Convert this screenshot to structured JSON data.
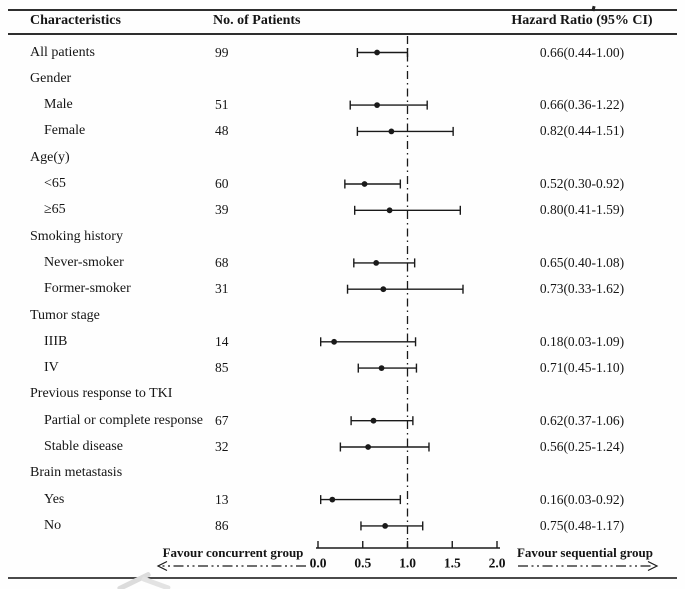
{
  "chart_data": {
    "type": "forest",
    "title": "",
    "columns": [
      "Characteristics",
      "No. of Patients",
      "Hazard Ratio (95% CI)"
    ],
    "axis": {
      "xlim": [
        0.0,
        2.0
      ],
      "tick_labels": [
        "0.0",
        "0.5",
        "1.0",
        "1.5",
        "2.0"
      ],
      "tick_values": [
        0.0,
        0.5,
        1.0,
        1.5,
        2.0
      ],
      "reference_line": 1.0
    },
    "annotations": {
      "left_arrow_label": "Favour concurrent group",
      "right_arrow_label": "Favour sequential group"
    },
    "rows": [
      {
        "label": "All patients",
        "indent": 0,
        "n": "99",
        "hr": 0.66,
        "lo": 0.44,
        "hi": 1.0,
        "ci_text": "0.66(0.44-1.00)"
      },
      {
        "label": "Gender",
        "indent": 0,
        "n": null,
        "hr": null,
        "lo": null,
        "hi": null,
        "ci_text": null
      },
      {
        "label": "Male",
        "indent": 1,
        "n": "51",
        "hr": 0.66,
        "lo": 0.36,
        "hi": 1.22,
        "ci_text": "0.66(0.36-1.22)"
      },
      {
        "label": "Female",
        "indent": 1,
        "n": "48",
        "hr": 0.82,
        "lo": 0.44,
        "hi": 1.51,
        "ci_text": "0.82(0.44-1.51)"
      },
      {
        "label": "Age(y)",
        "indent": 0,
        "n": null,
        "hr": null,
        "lo": null,
        "hi": null,
        "ci_text": null
      },
      {
        "label": "<65",
        "indent": 1,
        "n": "60",
        "hr": 0.52,
        "lo": 0.3,
        "hi": 0.92,
        "ci_text": "0.52(0.30-0.92)"
      },
      {
        "label": "≥65",
        "indent": 1,
        "n": "39",
        "hr": 0.8,
        "lo": 0.41,
        "hi": 1.59,
        "ci_text": "0.80(0.41-1.59)"
      },
      {
        "label": "Smoking history",
        "indent": 0,
        "n": null,
        "hr": null,
        "lo": null,
        "hi": null,
        "ci_text": null
      },
      {
        "label": "Never-smoker",
        "indent": 1,
        "n": "68",
        "hr": 0.65,
        "lo": 0.4,
        "hi": 1.08,
        "ci_text": "0.65(0.40-1.08)"
      },
      {
        "label": "Former-smoker",
        "indent": 1,
        "n": "31",
        "hr": 0.73,
        "lo": 0.33,
        "hi": 1.62,
        "ci_text": "0.73(0.33-1.62)"
      },
      {
        "label": "Tumor stage",
        "indent": 0,
        "n": null,
        "hr": null,
        "lo": null,
        "hi": null,
        "ci_text": null
      },
      {
        "label": "IIIB",
        "indent": 1,
        "n": "14",
        "hr": 0.18,
        "lo": 0.03,
        "hi": 1.09,
        "ci_text": "0.18(0.03-1.09)"
      },
      {
        "label": "IV",
        "indent": 1,
        "n": "85",
        "hr": 0.71,
        "lo": 0.45,
        "hi": 1.1,
        "ci_text": "0.71(0.45-1.10)"
      },
      {
        "label": "Previous response to TKI",
        "indent": 0,
        "n": null,
        "hr": null,
        "lo": null,
        "hi": null,
        "ci_text": null
      },
      {
        "label": "Partial or complete response",
        "indent": 1,
        "n": "67",
        "hr": 0.62,
        "lo": 0.37,
        "hi": 1.06,
        "ci_text": "0.62(0.37-1.06)"
      },
      {
        "label": "Stable disease",
        "indent": 1,
        "n": "32",
        "hr": 0.56,
        "lo": 0.25,
        "hi": 1.24,
        "ci_text": "0.56(0.25-1.24)"
      },
      {
        "label": "Brain metastasis",
        "indent": 0,
        "n": null,
        "hr": null,
        "lo": null,
        "hi": null,
        "ci_text": null
      },
      {
        "label": "Yes",
        "indent": 1,
        "n": "13",
        "hr": 0.16,
        "lo": 0.03,
        "hi": 0.92,
        "ci_text": "0.16(0.03-0.92)"
      },
      {
        "label": "No",
        "indent": 1,
        "n": "86",
        "hr": 0.75,
        "lo": 0.48,
        "hi": 1.17,
        "ci_text": "0.75(0.48-1.17)"
      }
    ],
    "colors": {
      "ink": "#1a1a1a",
      "rule": "#2e2e2e",
      "watermark": "#dcdcdc"
    }
  }
}
